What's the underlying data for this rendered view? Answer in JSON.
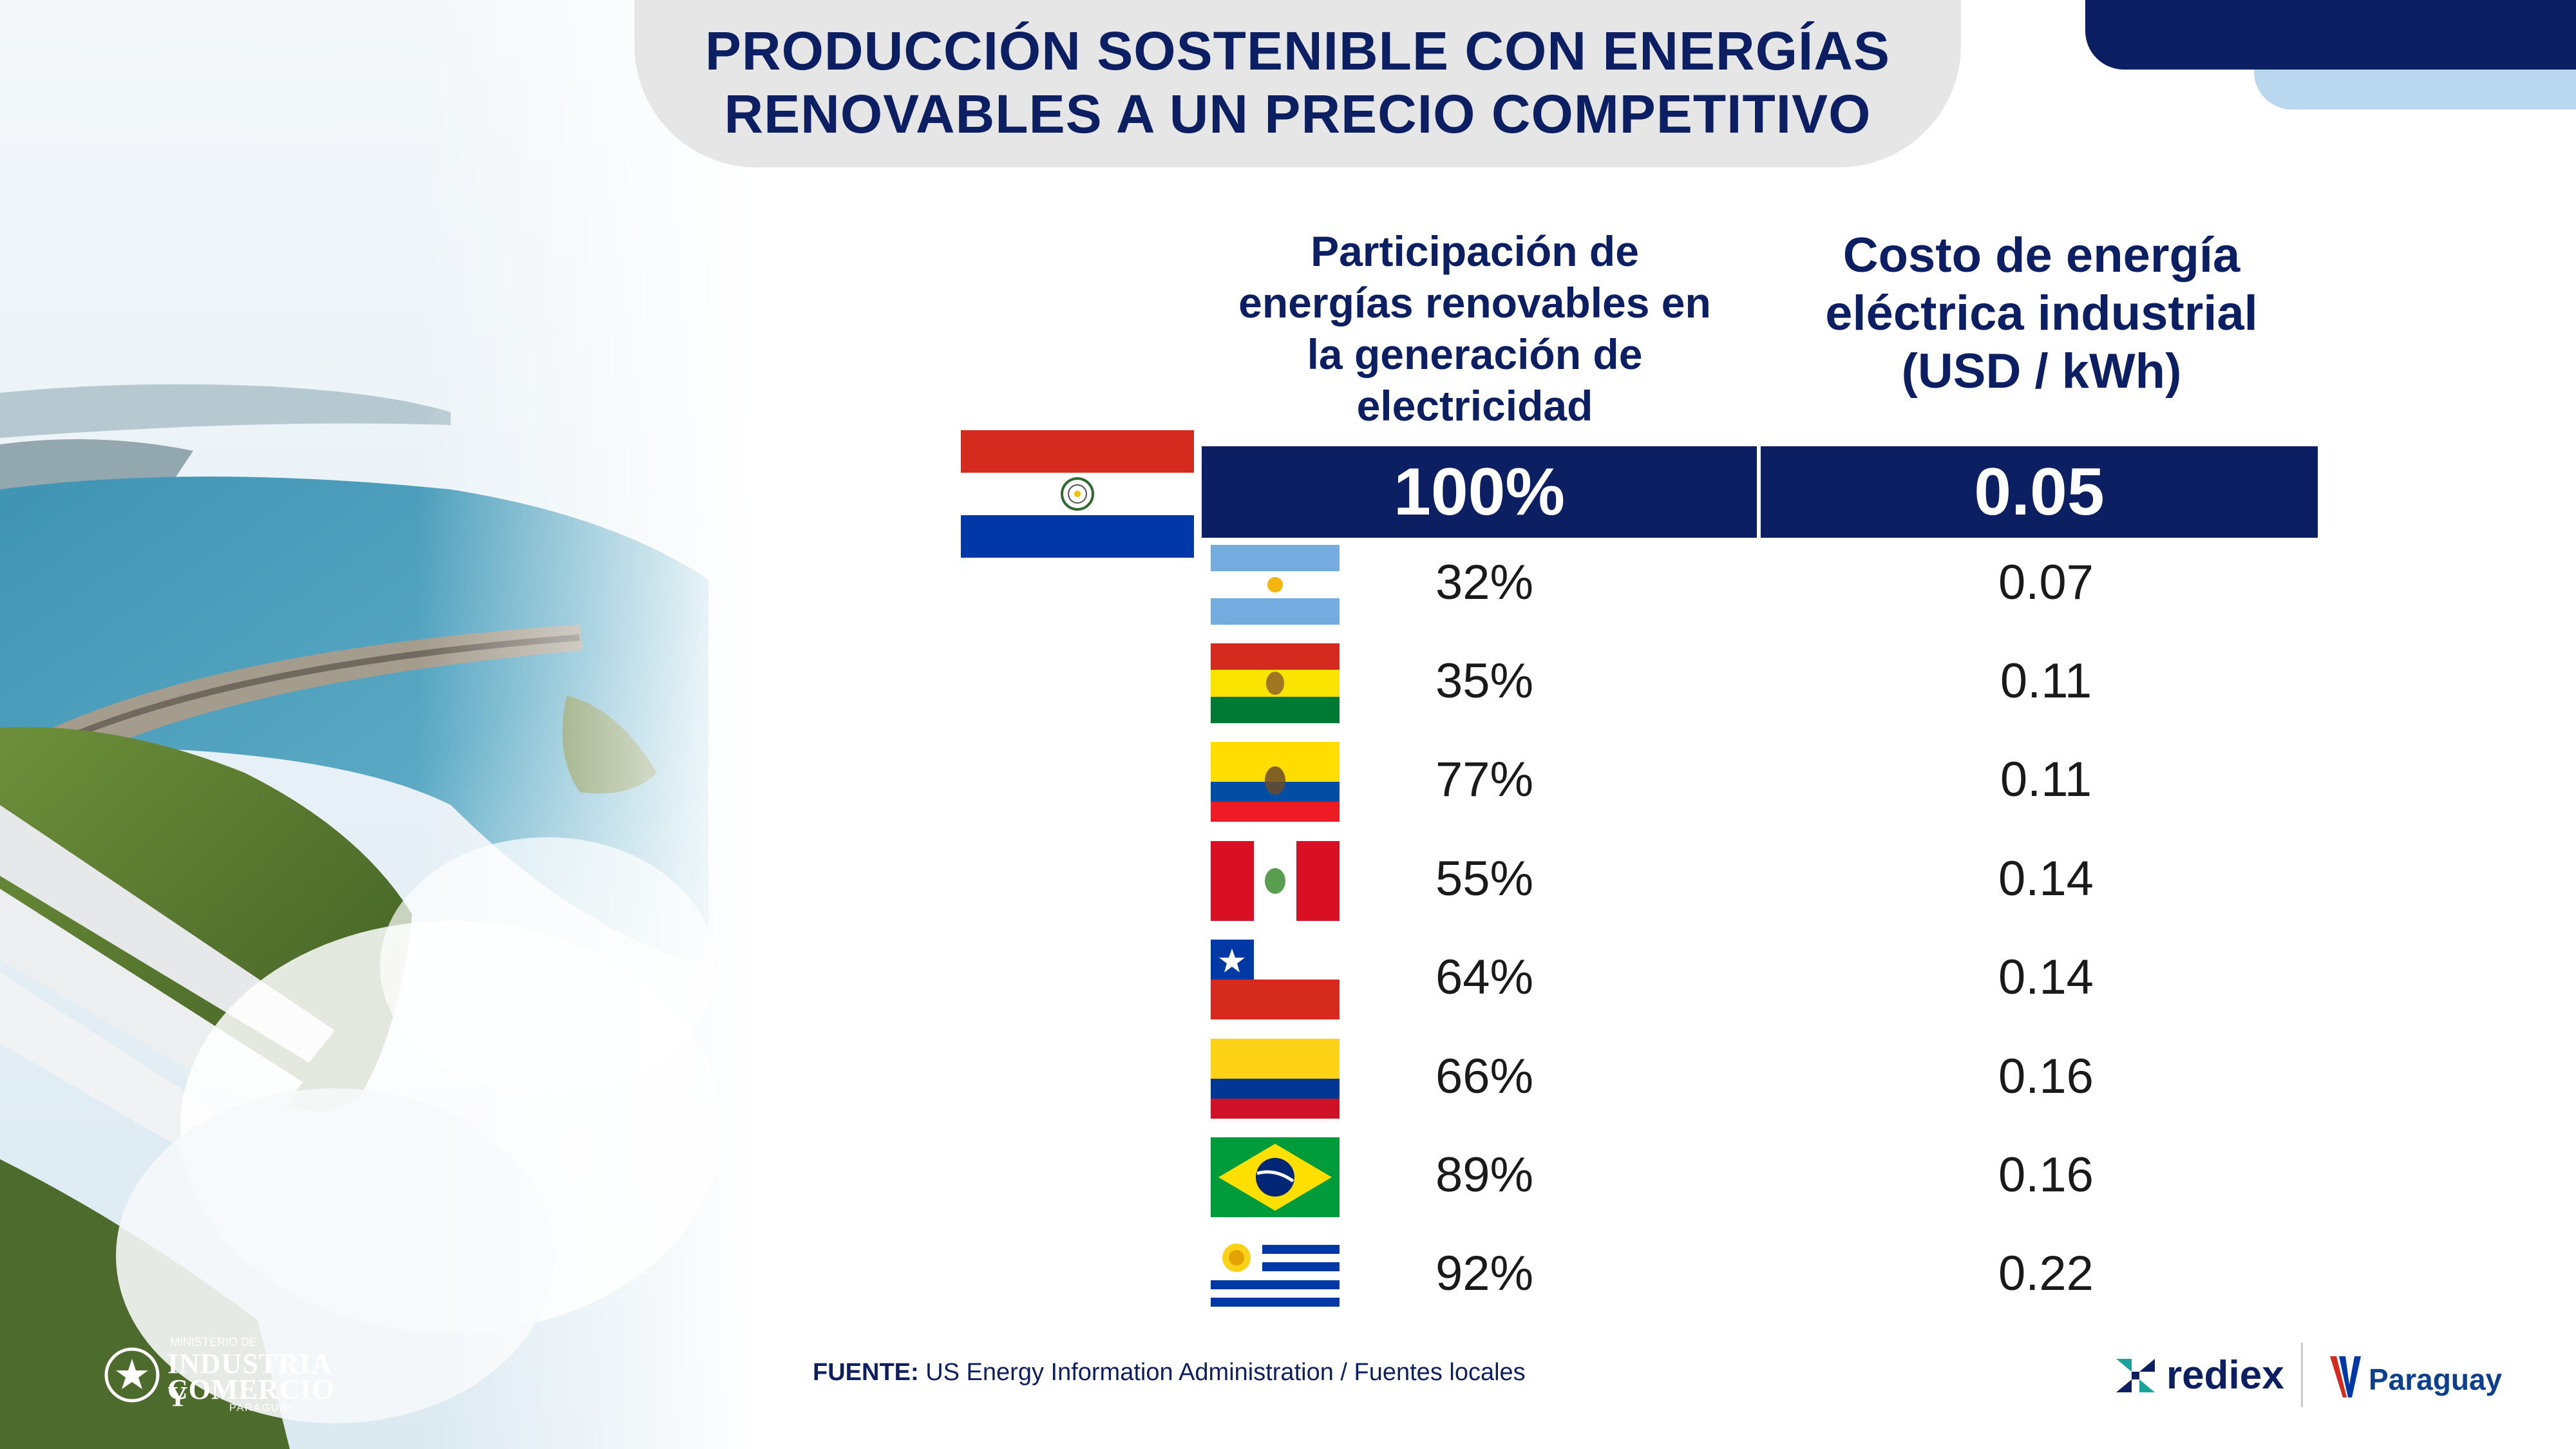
{
  "title": {
    "line1": "PRODUCCIÓN SOSTENIBLE CON ENERGÍAS",
    "line2": "RENOVABLES A UN PRECIO COMPETITIVO"
  },
  "headers": {
    "renewables": [
      "Participación de",
      "energías renovables en",
      "la generación de",
      "electricidad"
    ],
    "cost": [
      "Costo de energía",
      "eléctrica industrial",
      "(USD / kWh)"
    ]
  },
  "highlight": {
    "country_flag": "paraguay-flag",
    "renewables": "100%",
    "cost": "0.05"
  },
  "rows": [
    {
      "flag": "argentina-flag",
      "renewables": "32%",
      "cost": "0.07"
    },
    {
      "flag": "bolivia-flag",
      "renewables": "35%",
      "cost": "0.11"
    },
    {
      "flag": "ecuador-flag",
      "renewables": "77%",
      "cost": "0.11"
    },
    {
      "flag": "peru-flag",
      "renewables": "55%",
      "cost": "0.14"
    },
    {
      "flag": "chile-flag",
      "renewables": "64%",
      "cost": "0.14"
    },
    {
      "flag": "colombia-flag",
      "renewables": "66%",
      "cost": "0.16"
    },
    {
      "flag": "brazil-flag",
      "renewables": "89%",
      "cost": "0.16"
    },
    {
      "flag": "uruguay-flag",
      "renewables": "92%",
      "cost": "0.22"
    }
  ],
  "source": {
    "label": "FUENTE:",
    "text": " US Energy Information Administration / Fuentes locales"
  },
  "logos": {
    "ministry": {
      "small": "MINISTERIO DE",
      "line1": "INDUSTRIA Y",
      "line2": "COMERCIO",
      "country": "PARAGUAY"
    },
    "rediex": "rediex",
    "paraguay": "Paraguay"
  },
  "colors": {
    "navy": "#0d1f63",
    "title_pill": "#e6e6e6",
    "light_blue": "#b9d7ef"
  }
}
